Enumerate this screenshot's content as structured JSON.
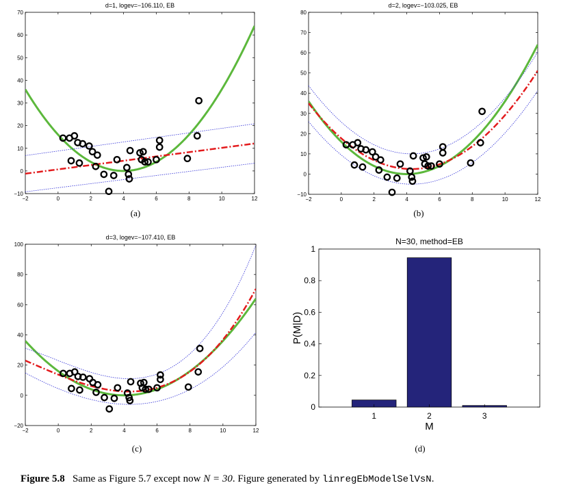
{
  "chart_data": [
    {
      "id": "a",
      "type": "scatter",
      "title": "d=1, logev=−106.110, EB",
      "sublabel": "(a)",
      "xlim": [
        -2,
        12
      ],
      "ylim": [
        -10,
        70
      ],
      "xticks": [
        -2,
        0,
        2,
        4,
        6,
        8,
        10,
        12
      ],
      "yticks": [
        -10,
        0,
        10,
        20,
        30,
        40,
        50,
        60,
        70
      ],
      "fit": {
        "kind": "poly",
        "coef": [
          0.7,
          0.95
        ]
      },
      "bands": [
        {
          "kind": "poly",
          "coef": [
            8.8,
            1.0
          ]
        },
        {
          "kind": "poly",
          "coef": [
            -7.4,
            0.9
          ]
        }
      ]
    },
    {
      "id": "b",
      "type": "scatter",
      "title": "d=2, logev=−103.025, EB",
      "sublabel": "(b)",
      "xlim": [
        -2,
        12
      ],
      "ylim": [
        -10,
        80
      ],
      "xticks": [
        -2,
        0,
        2,
        4,
        6,
        8,
        10,
        12
      ],
      "yticks": [
        -10,
        0,
        10,
        20,
        30,
        40,
        50,
        60,
        70,
        80
      ],
      "fit": {
        "kind": "quad",
        "a": 0.82,
        "h": 4.3,
        "k": 2.5
      },
      "bands": [
        {
          "kind": "quad",
          "a": 0.85,
          "h": 4.3,
          "k": 10.0
        },
        {
          "kind": "quad",
          "a": 0.78,
          "h": 4.3,
          "k": -5.0
        }
      ]
    },
    {
      "id": "c",
      "type": "scatter",
      "title": "d=3, logev=−107.410, EB",
      "sublabel": "(c)",
      "xlim": [
        -2,
        12
      ],
      "ylim": [
        -20,
        100
      ],
      "xticks": [
        -2,
        0,
        2,
        4,
        6,
        8,
        10,
        12
      ],
      "yticks": [
        -20,
        0,
        20,
        40,
        60,
        80,
        100
      ],
      "fit": {
        "kind": "cubic",
        "a": 0.8,
        "h": 4.3,
        "k": 2.5,
        "c": 0.045
      },
      "bands": [
        {
          "kind": "cubic",
          "a": 0.95,
          "h": 4.3,
          "k": 11.0,
          "c": 0.07
        },
        {
          "kind": "cubic",
          "a": 0.65,
          "h": 4.3,
          "k": -6.0,
          "c": 0.02
        }
      ]
    },
    {
      "id": "d",
      "type": "bar",
      "title": "N=30, method=EB",
      "sublabel": "(d)",
      "xlabel": "M",
      "ylabel": "P(M|D)",
      "categories": [
        "1",
        "2",
        "3"
      ],
      "values": [
        0.045,
        0.945,
        0.01
      ],
      "ylim": [
        0,
        1
      ],
      "yticks": [
        0,
        0.2,
        0.4,
        0.6,
        0.8,
        1
      ],
      "bar_color": "#24247a"
    }
  ],
  "true_function": {
    "a": 1,
    "h": 4,
    "k": 0,
    "color": "#5cb83c"
  },
  "data_points": [
    [
      0.3,
      14.5
    ],
    [
      0.7,
      14.5
    ],
    [
      0.8,
      4.5
    ],
    [
      1.0,
      15.5
    ],
    [
      1.2,
      12.5
    ],
    [
      1.3,
      3.5
    ],
    [
      1.5,
      12.0
    ],
    [
      1.9,
      11.0
    ],
    [
      2.1,
      8.5
    ],
    [
      2.3,
      2.0
    ],
    [
      2.4,
      7.0
    ],
    [
      2.8,
      -1.5
    ],
    [
      3.1,
      -9.0
    ],
    [
      3.4,
      -2.0
    ],
    [
      3.6,
      5.0
    ],
    [
      4.2,
      1.5
    ],
    [
      4.3,
      -1.5
    ],
    [
      4.35,
      -3.5
    ],
    [
      4.4,
      9.0
    ],
    [
      5.0,
      8.0
    ],
    [
      5.1,
      5.0
    ],
    [
      5.2,
      8.5
    ],
    [
      5.3,
      4.0
    ],
    [
      5.5,
      4.0
    ],
    [
      6.0,
      5.0
    ],
    [
      6.2,
      10.5
    ],
    [
      6.2,
      13.5
    ],
    [
      7.9,
      5.5
    ],
    [
      8.5,
      15.5
    ],
    [
      8.6,
      31.0
    ]
  ],
  "colors": {
    "mean": "#e31a1c",
    "band": "#2b2bd6",
    "points": "#000000"
  },
  "caption": {
    "label": "Figure 5.8",
    "text_pre": "Same as Figure 5.7 except now ",
    "math": "N = 30",
    "text_mid": ". Figure generated by ",
    "code": "linregEbModelSelVsN",
    "text_post": "."
  }
}
